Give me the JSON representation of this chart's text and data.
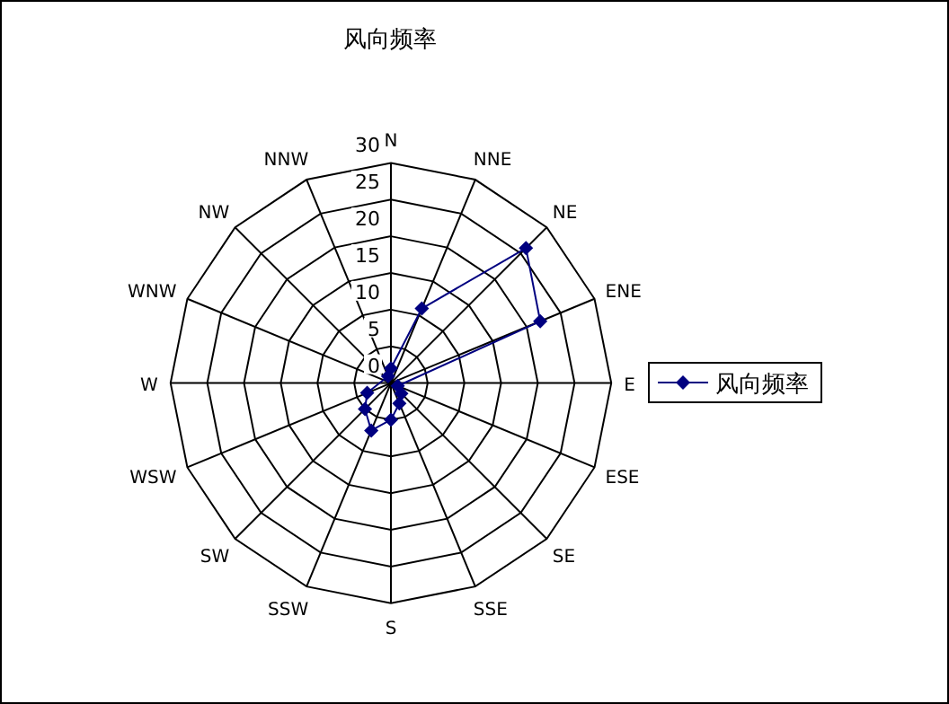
{
  "chart_data": {
    "type": "radar",
    "title": "风向频率",
    "categories": [
      "N",
      "NNE",
      "NE",
      "ENE",
      "E",
      "ESE",
      "SE",
      "SSE",
      "S",
      "SSW",
      "SW",
      "WSW",
      "W",
      "WNW",
      "NW",
      "NNW"
    ],
    "series": [
      {
        "name": "风向频率",
        "color": "#000080",
        "values": [
          2,
          11,
          26,
          22,
          null,
          1,
          2,
          3,
          5,
          7,
          5,
          3.5,
          null,
          null,
          null,
          1
        ]
      }
    ],
    "ylim": [
      0,
      30
    ],
    "yticks": [
      0,
      5,
      10,
      15,
      20,
      25,
      30
    ],
    "grid": true,
    "legend": "right",
    "marker": "diamond"
  }
}
